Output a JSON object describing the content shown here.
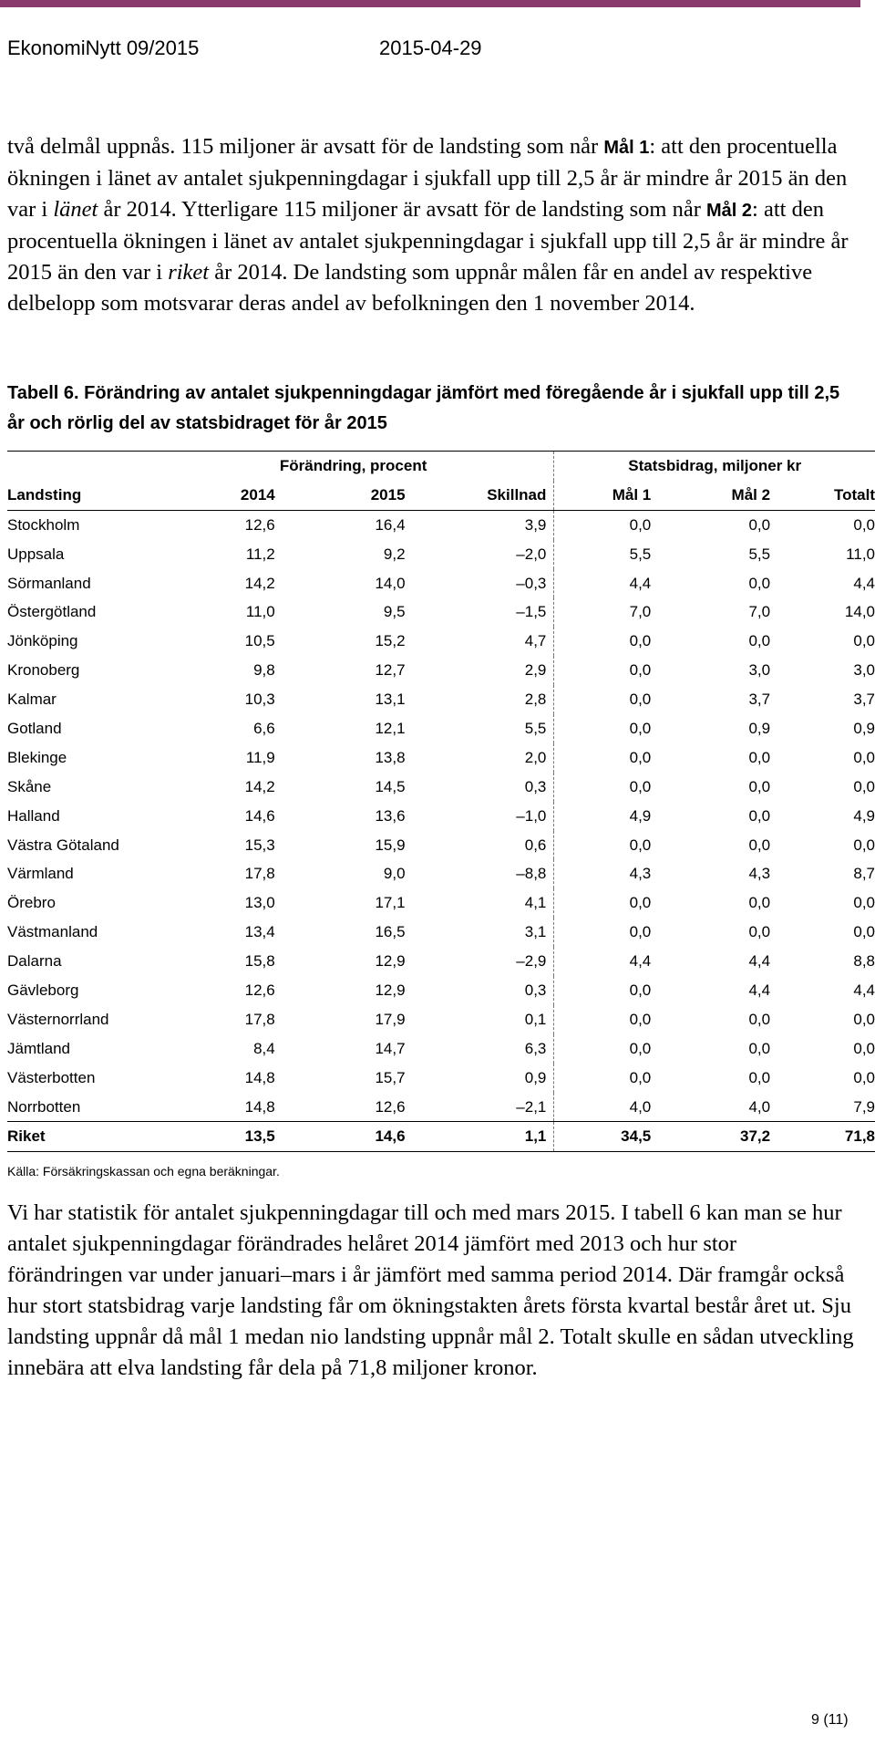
{
  "header": {
    "publication": "EkonomiNytt 09/2015",
    "date": "2015-04-29",
    "accent_color": "#8b3a6e"
  },
  "para1": {
    "t1": "två delmål uppnås. 115 miljoner är avsatt för de landsting som når ",
    "goal1": "Mål 1",
    "t2": ": att den procentuella ökningen i länet av antalet sjukpenningdagar i sjukfall upp till 2,5 år är mindre år 2015 än den var i ",
    "lanet": "länet",
    "t3": " år 2014. Ytterligare 115 miljoner är avsatt för de landsting som når ",
    "goal2": "Mål 2",
    "t4": ": att den procentuella ökningen i länet av antalet sjukpenningdagar i sjukfall upp till 2,5 år är mindre år 2015 än den var i ",
    "riket": "riket",
    "t5": " år 2014. De landsting som uppnår målen får en andel av respektive delbelopp som motsvarar deras andel av befolkningen den 1 november 2014."
  },
  "table": {
    "caption": "Tabell 6. Förändring av antalet sjukpenningdagar jämfört med föregående år i sjukfall upp till 2,5 år och rörlig del av statsbidraget för år 2015",
    "group_change": "Förändring, procent",
    "group_grant": "Statsbidrag, miljoner kr",
    "columns": [
      "Landsting",
      "2014",
      "2015",
      "Skillnad",
      "Mål 1",
      "Mål 2",
      "Totalt"
    ],
    "rows": [
      [
        "Stockholm",
        "12,6",
        "16,4",
        "3,9",
        "0,0",
        "0,0",
        "0,0"
      ],
      [
        "Uppsala",
        "11,2",
        "9,2",
        "–2,0",
        "5,5",
        "5,5",
        "11,0"
      ],
      [
        "Sörmanland",
        "14,2",
        "14,0",
        "–0,3",
        "4,4",
        "0,0",
        "4,4"
      ],
      [
        "Östergötland",
        "11,0",
        "9,5",
        "–1,5",
        "7,0",
        "7,0",
        "14,0"
      ],
      [
        "Jönköping",
        "10,5",
        "15,2",
        "4,7",
        "0,0",
        "0,0",
        "0,0"
      ],
      [
        "Kronoberg",
        "9,8",
        "12,7",
        "2,9",
        "0,0",
        "3,0",
        "3,0"
      ],
      [
        "Kalmar",
        "10,3",
        "13,1",
        "2,8",
        "0,0",
        "3,7",
        "3,7"
      ],
      [
        "Gotland",
        "6,6",
        "12,1",
        "5,5",
        "0,0",
        "0,9",
        "0,9"
      ],
      [
        "Blekinge",
        "11,9",
        "13,8",
        "2,0",
        "0,0",
        "0,0",
        "0,0"
      ],
      [
        "Skåne",
        "14,2",
        "14,5",
        "0,3",
        "0,0",
        "0,0",
        "0,0"
      ],
      [
        "Halland",
        "14,6",
        "13,6",
        "–1,0",
        "4,9",
        "0,0",
        "4,9"
      ],
      [
        "Västra Götaland",
        "15,3",
        "15,9",
        "0,6",
        "0,0",
        "0,0",
        "0,0"
      ],
      [
        "Värmland",
        "17,8",
        "9,0",
        "–8,8",
        "4,3",
        "4,3",
        "8,7"
      ],
      [
        "Örebro",
        "13,0",
        "17,1",
        "4,1",
        "0,0",
        "0,0",
        "0,0"
      ],
      [
        "Västmanland",
        "13,4",
        "16,5",
        "3,1",
        "0,0",
        "0,0",
        "0,0"
      ],
      [
        "Dalarna",
        "15,8",
        "12,9",
        "–2,9",
        "4,4",
        "4,4",
        "8,8"
      ],
      [
        "Gävleborg",
        "12,6",
        "12,9",
        "0,3",
        "0,0",
        "4,4",
        "4,4"
      ],
      [
        "Västernorrland",
        "17,8",
        "17,9",
        "0,1",
        "0,0",
        "0,0",
        "0,0"
      ],
      [
        "Jämtland",
        "8,4",
        "14,7",
        "6,3",
        "0,0",
        "0,0",
        "0,0"
      ],
      [
        "Västerbotten",
        "14,8",
        "15,7",
        "0,9",
        "0,0",
        "0,0",
        "0,0"
      ],
      [
        "Norrbotten",
        "14,8",
        "12,6",
        "–2,1",
        "4,0",
        "4,0",
        "7,9"
      ]
    ],
    "total": [
      "Riket",
      "13,5",
      "14,6",
      "1,1",
      "34,5",
      "37,2",
      "71,8"
    ],
    "source": "Källa: Försäkringskassan och egna beräkningar."
  },
  "para2": "Vi har statistik för antalet sjukpenningdagar till och med mars 2015. I tabell 6 kan man se hur antalet sjukpenningdagar förändrades helåret 2014 jämfört med 2013 och hur stor förändringen var under januari–mars i år jämfört med samma period 2014. Där framgår också hur stort statsbidrag varje landsting får om ökningstakten årets första kvartal består året ut. Sju landsting uppnår då mål 1 medan nio landsting uppnår mål 2. Totalt skulle en sådan utveckling innebära att elva landsting får dela på 71,8 miljoner kronor.",
  "footer": {
    "page": "9 (11)"
  }
}
